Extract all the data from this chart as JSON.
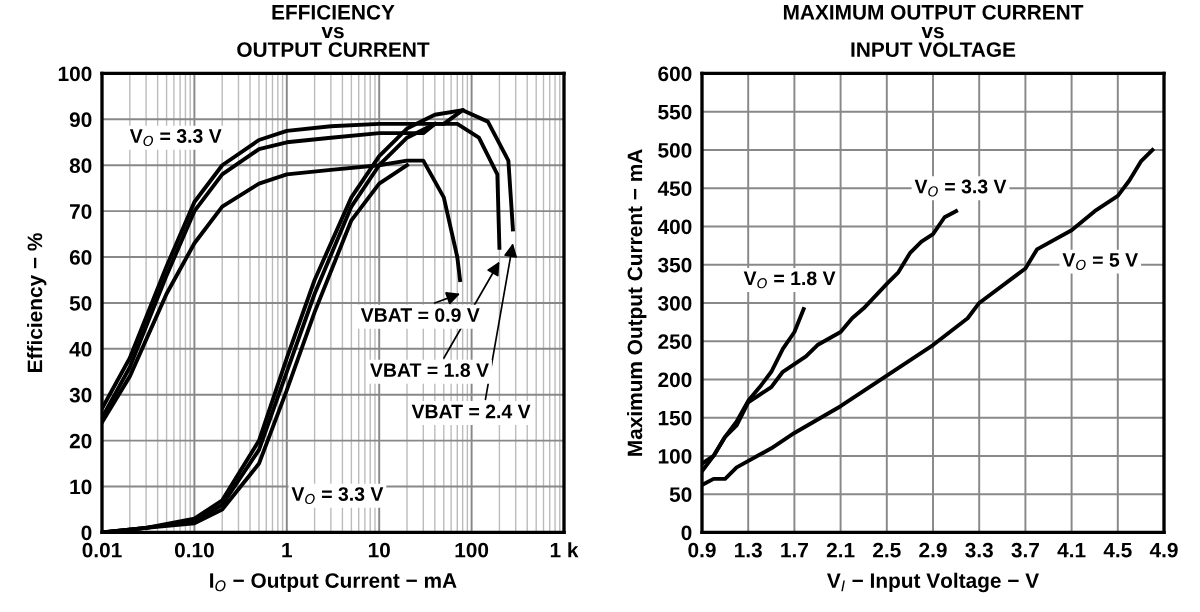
{
  "chart_data": [
    {
      "type": "line",
      "title": "EFFICIENCY\nvs\nOUTPUT CURRENT",
      "xlabel": "I$_{O}$ − Output Current − mA",
      "ylabel": "Efficiency − %",
      "log": "x",
      "grid": true,
      "legend": false,
      "xlim": [
        0.01,
        1000
      ],
      "xticks": [
        0.01,
        {
          "value": 0.1,
          "label": "0.10"
        },
        1,
        10,
        100,
        {
          "value": 1000,
          "label": "1 k"
        }
      ],
      "ylim": [
        0,
        100
      ],
      "yticks": [
        0,
        10,
        20,
        30,
        40,
        50,
        60,
        70,
        80,
        90,
        100
      ],
      "series": [
        {
          "color": "#000000",
          "x": [
            0.01,
            0.02,
            0.05,
            0.1,
            0.2,
            0.5,
            1,
            3,
            10,
            30,
            50,
            80,
            150,
            250,
            280
          ],
          "values": [
            27,
            38,
            58,
            72,
            80,
            85.5,
            87.5,
            88.5,
            89,
            89,
            89,
            92,
            89.5,
            81,
            66
          ]
        },
        {
          "color": "#000000",
          "x": [
            0.01,
            0.02,
            0.05,
            0.1,
            0.2,
            0.5,
            1,
            3,
            10,
            30,
            40,
            70,
            120,
            190,
            200
          ],
          "values": [
            25,
            36,
            56,
            70,
            78,
            83.5,
            85,
            86,
            87,
            87,
            89,
            89,
            86,
            78,
            62
          ]
        },
        {
          "color": "#000000",
          "x": [
            0.01,
            0.02,
            0.05,
            0.1,
            0.2,
            0.5,
            1,
            3,
            10,
            20,
            30,
            50,
            70,
            75
          ],
          "values": [
            24,
            34,
            52,
            63,
            71,
            76,
            78,
            79,
            80,
            81,
            81,
            73,
            60,
            55
          ]
        },
        {
          "color": "#000000",
          "x": [
            0.01,
            0.03,
            0.1,
            0.2,
            0.5,
            1,
            2,
            5,
            10,
            20,
            40,
            80
          ],
          "values": [
            0,
            1,
            3,
            7,
            20,
            38,
            55,
            73,
            82,
            88,
            91,
            92
          ]
        },
        {
          "color": "#000000",
          "x": [
            0.01,
            0.03,
            0.1,
            0.2,
            0.5,
            1,
            2,
            5,
            10,
            20,
            40
          ],
          "values": [
            0,
            1,
            2.5,
            6,
            18,
            35,
            52,
            71,
            80,
            86,
            89
          ]
        },
        {
          "color": "#000000",
          "x": [
            0.01,
            0.03,
            0.1,
            0.2,
            0.5,
            1,
            2,
            5,
            10,
            20
          ],
          "values": [
            0,
            1,
            2,
            5,
            15,
            31,
            48,
            68,
            76,
            80
          ]
        }
      ],
      "annotations": [
        "V$_{O}$ = 3.3 V",
        "V$_{O}$ = 3.3 V",
        {
          "text": "VBAT = 0.9 V",
          "x": 75,
          "y": 55
        },
        {
          "text": "VBAT = 1.8 V",
          "x": 200,
          "y": 62
        },
        {
          "text": "VBAT = 2.4 V",
          "x": 280,
          "y": 66
        }
      ]
    },
    {
      "type": "line",
      "title": "MAXIMUM OUTPUT CURRENT\nvs\nINPUT VOLTAGE",
      "xlabel": "V$_{I}$ − Input Voltage − V",
      "ylabel": "Maximum Output Current − mA",
      "grid": true,
      "legend": false,
      "xlim": [
        0.9,
        4.9
      ],
      "xticks": [
        0.9,
        1.3,
        1.7,
        2.1,
        2.5,
        2.9,
        3.3,
        3.7,
        4.1,
        4.5,
        4.9
      ],
      "ylim": [
        0,
        600
      ],
      "yticks": [
        0,
        50,
        100,
        150,
        200,
        250,
        300,
        350,
        400,
        450,
        500,
        550,
        600
      ],
      "series": [
        {
          "color": "#000000",
          "x": [
            0.9,
            1.0,
            1.1,
            1.2,
            1.3,
            1.4,
            1.5,
            1.6,
            1.7,
            1.78
          ],
          "values": [
            90,
            100,
            125,
            145,
            172,
            190,
            210,
            240,
            262,
            292
          ]
        },
        {
          "color": "#000000",
          "x": [
            0.9,
            1.0,
            1.1,
            1.2,
            1.3,
            1.5,
            1.6,
            1.8,
            1.9,
            2.1,
            2.2,
            2.3,
            2.5,
            2.6,
            2.7,
            2.8,
            2.9,
            3.0,
            3.1
          ],
          "values": [
            80,
            100,
            125,
            140,
            170,
            190,
            210,
            230,
            245,
            262,
            280,
            293,
            325,
            340,
            365,
            380,
            390,
            412,
            420
          ]
        },
        {
          "color": "#000000",
          "x": [
            0.9,
            1.0,
            1.1,
            1.2,
            1.5,
            1.7,
            2.1,
            2.3,
            2.5,
            2.9,
            3.2,
            3.3,
            3.7,
            3.8,
            4.1,
            4.3,
            4.5,
            4.6,
            4.7,
            4.8
          ],
          "values": [
            62,
            70,
            70,
            85,
            110,
            130,
            165,
            185,
            205,
            245,
            280,
            300,
            345,
            370,
            395,
            420,
            440,
            460,
            485,
            500
          ]
        }
      ],
      "annotations": [
        "V$_{O}$ = 1.8 V",
        "V$_{O}$ = 3.3 V",
        "V$_{O}$ = 5 V"
      ]
    }
  ]
}
